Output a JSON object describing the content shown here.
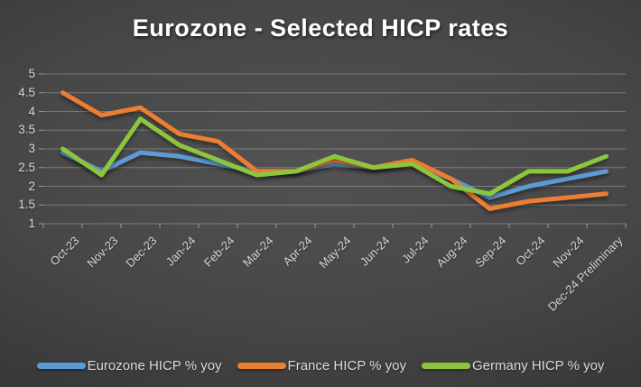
{
  "title": "Eurozone - Selected HICP rates",
  "colors": {
    "background_center": "#4f4f4f",
    "background_edge": "#242424",
    "title_text": "#ffffff",
    "axis_text": "#d9d9d9",
    "gridline": "#d9d9d9",
    "eurozone_blue": "#5B9BD5",
    "france_orange": "#ED7D31",
    "germany_green": "#8CC63E"
  },
  "chart_data": {
    "type": "line",
    "title": "Eurozone - Selected HICP rates",
    "categories": [
      "Oct-23",
      "Nov-23",
      "Dec-23",
      "Jan-24",
      "Feb-24",
      "Mar-24",
      "Apr-24",
      "May-24",
      "Jun-24",
      "Jul-24",
      "Aug-24",
      "Sep-24",
      "Oct-24",
      "Nov-24",
      "Dec-24 Preliminary"
    ],
    "series": [
      {
        "name": "Eurozone HICP % yoy",
        "color": "#5B9BD5",
        "values": [
          2.9,
          2.4,
          2.9,
          2.8,
          2.6,
          2.4,
          2.4,
          2.6,
          2.5,
          2.6,
          2.2,
          1.7,
          2.0,
          2.2,
          2.4
        ]
      },
      {
        "name": "France HICP % yoy",
        "color": "#ED7D31",
        "values": [
          4.5,
          3.9,
          4.1,
          3.4,
          3.2,
          2.4,
          2.4,
          2.7,
          2.5,
          2.7,
          2.2,
          1.4,
          1.6,
          1.7,
          1.8
        ]
      },
      {
        "name": "Germany HICP % yoy",
        "color": "#8CC63E",
        "values": [
          3.0,
          2.3,
          3.8,
          3.1,
          2.7,
          2.3,
          2.4,
          2.8,
          2.5,
          2.6,
          2.0,
          1.8,
          2.4,
          2.4,
          2.8
        ]
      }
    ],
    "xlabel": "",
    "ylabel": "",
    "ylim": [
      1,
      5
    ],
    "yticks": [
      1,
      1.5,
      2,
      2.5,
      3,
      3.5,
      4,
      4.5,
      5
    ],
    "grid": "horizontal",
    "legend_position": "bottom"
  }
}
